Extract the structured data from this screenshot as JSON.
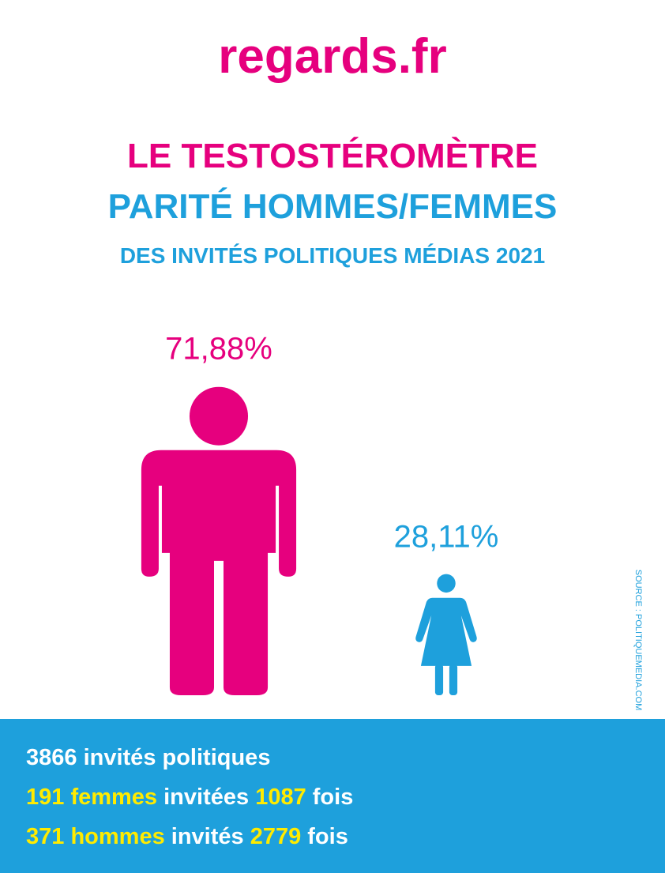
{
  "logo": "regards.fr",
  "title": [
    "LE TESTOSTÉROMÈTRE",
    "PARITÉ HOMMES/FEMMES",
    "DES INVITÉS POLITIQUES MÉDIAS 2021"
  ],
  "chart_data": {
    "type": "pictogram",
    "categories": [
      null,
      null
    ],
    "values": [
      71.88,
      28.11
    ],
    "value_labels": [
      "71,88%",
      "28,11%"
    ],
    "colors": [
      "#e6007e",
      "#1ea0dc"
    ]
  },
  "source": "SOURCE : POLITIQUEMEDIA.COM",
  "stats": [
    [
      {
        "text": "3866 invités politiques",
        "color": "#ffffff"
      }
    ],
    [
      {
        "text": "191 femmes",
        "color": "#ffeb00"
      },
      {
        "text": " invitées ",
        "color": "#ffffff"
      },
      {
        "text": "1087",
        "color": "#ffeb00"
      },
      {
        "text": " fois",
        "color": "#ffffff"
      }
    ],
    [
      {
        "text": "371 hommes",
        "color": "#ffeb00"
      },
      {
        "text": " invités ",
        "color": "#ffffff"
      },
      {
        "text": "2779",
        "color": "#ffeb00"
      },
      {
        "text": " fois",
        "color": "#ffffff"
      }
    ]
  ]
}
